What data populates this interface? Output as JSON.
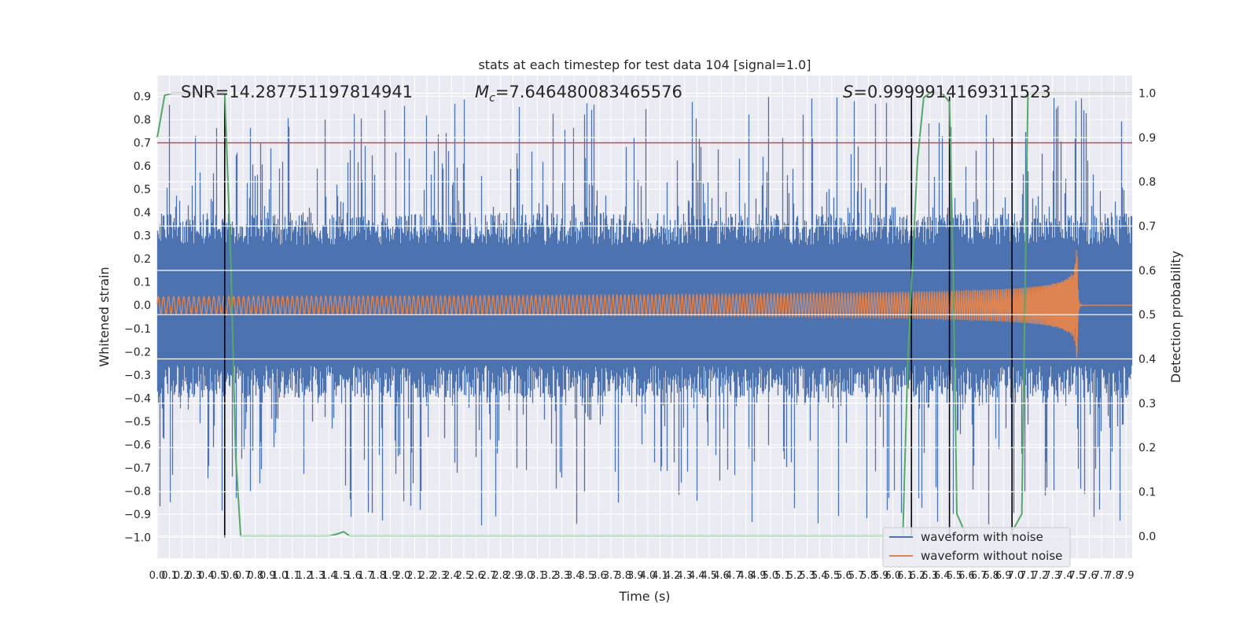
{
  "chart_data": {
    "type": "line",
    "title": "stats at each timestep for test data 104 [signal=1.0]",
    "xlabel": "Time (s)",
    "ylabel": "Whitened strain",
    "ylabel_right": "Detection probability",
    "xlim": [
      0.0,
      7.95
    ],
    "ylim": [
      -1.09,
      0.99
    ],
    "ylim_right": [
      -0.05,
      1.04
    ],
    "x_ticks": [
      0.0,
      0.1,
      0.2,
      0.3,
      0.4,
      0.5,
      0.6,
      0.7,
      0.8,
      0.9,
      1.0,
      1.1,
      1.2,
      1.3,
      1.4,
      1.5,
      1.6,
      1.7,
      1.8,
      1.9,
      2.0,
      2.1,
      2.2,
      2.3,
      2.4,
      2.5,
      2.6,
      2.7,
      2.8,
      2.9,
      3.0,
      3.1,
      3.2,
      3.3,
      3.4,
      3.5,
      3.6,
      3.7,
      3.8,
      3.9,
      4.0,
      4.1,
      4.2,
      4.3,
      4.4,
      4.5,
      4.6,
      4.7,
      4.8,
      4.9,
      5.0,
      5.1,
      5.2,
      5.3,
      5.4,
      5.5,
      5.6,
      5.7,
      5.8,
      5.9,
      6.0,
      6.1,
      6.2,
      6.3,
      6.4,
      6.5,
      6.6,
      6.7,
      6.8,
      6.9,
      7.0,
      7.1,
      7.2,
      7.3,
      7.4,
      7.5,
      7.6,
      7.7,
      7.8,
      7.9
    ],
    "y_ticks": [
      -1.0,
      -0.9,
      -0.8,
      -0.7,
      -0.6,
      -0.5,
      -0.4,
      -0.3,
      -0.2,
      -0.1,
      0.0,
      0.1,
      0.2,
      0.3,
      0.4,
      0.5,
      0.6,
      0.7,
      0.8,
      0.9
    ],
    "y_ticks_right": [
      0.0,
      0.1,
      0.2,
      0.3,
      0.4,
      0.5,
      0.6,
      0.7,
      0.8,
      0.9,
      1.0
    ],
    "grid": true,
    "annotations": {
      "snr": "SNR=14.287751197814941",
      "mc_symbol": "M",
      "mc_sub": "c",
      "mc_value": "=7.646480083465576",
      "s_symbol": "S",
      "s_value": "=0.9999914169311523"
    },
    "threshold_line": {
      "y": 0.7,
      "color": "#c44e52"
    },
    "vertical_markers": [
      {
        "x": 0.55,
        "y_top": 0.9,
        "y_bottom": -1.0
      },
      {
        "x": 6.15,
        "y_top": 0.9,
        "y_bottom": -1.0
      },
      {
        "x": 6.46,
        "y_top": 0.9,
        "y_bottom": -1.0
      },
      {
        "x": 6.97,
        "y_top": 0.9,
        "y_bottom": -1.0
      }
    ],
    "series": [
      {
        "name": "waveform with noise",
        "color": "#4c72b0",
        "axis": "left",
        "amplitude_envelope": [
          -0.45,
          0.45
        ],
        "spike_range": [
          -0.95,
          0.9
        ]
      },
      {
        "name": "waveform without noise",
        "color": "#dd8452",
        "axis": "left",
        "chirp": {
          "start_freq_hz": 24,
          "merger_time": 7.5,
          "peak_amplitude": 0.3,
          "start_amplitude": 0.017
        }
      },
      {
        "name": "detection probability",
        "color": "#55a868",
        "axis": "right",
        "in_legend": false,
        "x": [
          0.0,
          0.06,
          0.12,
          0.2,
          0.3,
          0.4,
          0.5,
          0.55,
          0.6,
          0.64,
          0.68,
          1.0,
          1.2,
          1.4,
          1.47,
          1.52,
          1.57,
          1.8,
          2.5,
          3.0,
          4.0,
          5.0,
          5.8,
          6.08,
          6.12,
          6.2,
          6.25,
          6.3,
          6.35,
          6.4,
          6.46,
          6.49,
          6.52,
          6.6,
          6.8,
          6.95,
          7.05,
          7.1,
          7.2,
          7.5,
          7.95
        ],
        "y": [
          0.9,
          0.995,
          1.0,
          1.0,
          1.0,
          1.0,
          1.0,
          1.0,
          0.62,
          0.18,
          0.0,
          0.0,
          0.0,
          0.0,
          0.005,
          0.01,
          0.0,
          0.0,
          0.0,
          0.0,
          0.0,
          0.0,
          0.0,
          0.0,
          0.4,
          0.85,
          0.99,
          1.0,
          1.0,
          1.0,
          0.98,
          0.6,
          0.05,
          0.0,
          0.0,
          0.0,
          0.05,
          1.0,
          1.0,
          1.0,
          1.0
        ]
      }
    ],
    "legend": {
      "placement": "lower-right"
    }
  }
}
